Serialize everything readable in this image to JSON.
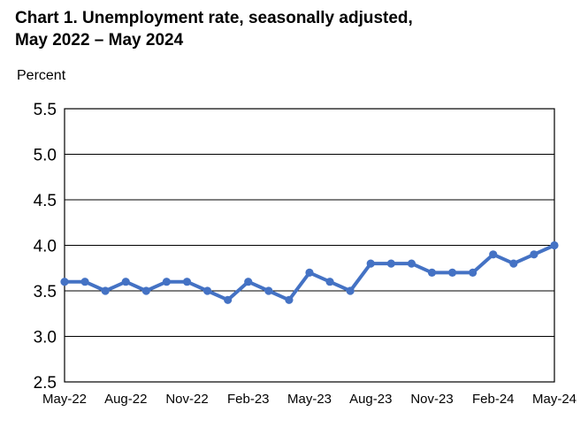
{
  "title": {
    "line1": "Chart 1. Unemployment rate, seasonally adjusted,",
    "line2": "May 2022 – May 2024"
  },
  "chart_data": {
    "type": "line",
    "title": "Chart 1. Unemployment rate, seasonally adjusted, May 2022 – May 2024",
    "ylabel": "Percent",
    "xlabel": "",
    "ylim": [
      2.5,
      5.5
    ],
    "yticks": [
      "2.5",
      "3.0",
      "3.5",
      "4.0",
      "4.5",
      "5.0",
      "5.5"
    ],
    "grid": true,
    "legend": "none",
    "categories": [
      "May-22",
      "Jun-22",
      "Jul-22",
      "Aug-22",
      "Sep-22",
      "Oct-22",
      "Nov-22",
      "Dec-22",
      "Jan-23",
      "Feb-23",
      "Mar-23",
      "Apr-23",
      "May-23",
      "Jun-23",
      "Jul-23",
      "Aug-23",
      "Sep-23",
      "Oct-23",
      "Nov-23",
      "Dec-23",
      "Jan-24",
      "Feb-24",
      "Mar-24",
      "Apr-24",
      "May-24"
    ],
    "xtick_labels": [
      "May-22",
      "Aug-22",
      "Nov-22",
      "Feb-23",
      "May-23",
      "Aug-23",
      "Nov-23",
      "Feb-24",
      "May-24"
    ],
    "series": [
      {
        "values": [
          3.6,
          3.6,
          3.5,
          3.6,
          3.5,
          3.6,
          3.6,
          3.5,
          3.4,
          3.6,
          3.5,
          3.4,
          3.7,
          3.6,
          3.5,
          3.8,
          3.8,
          3.8,
          3.7,
          3.7,
          3.7,
          3.9,
          3.8,
          3.9,
          4.0
        ]
      }
    ],
    "colors": {
      "series": "#4472C4",
      "grid": "#000000",
      "frame": "#000000"
    }
  }
}
